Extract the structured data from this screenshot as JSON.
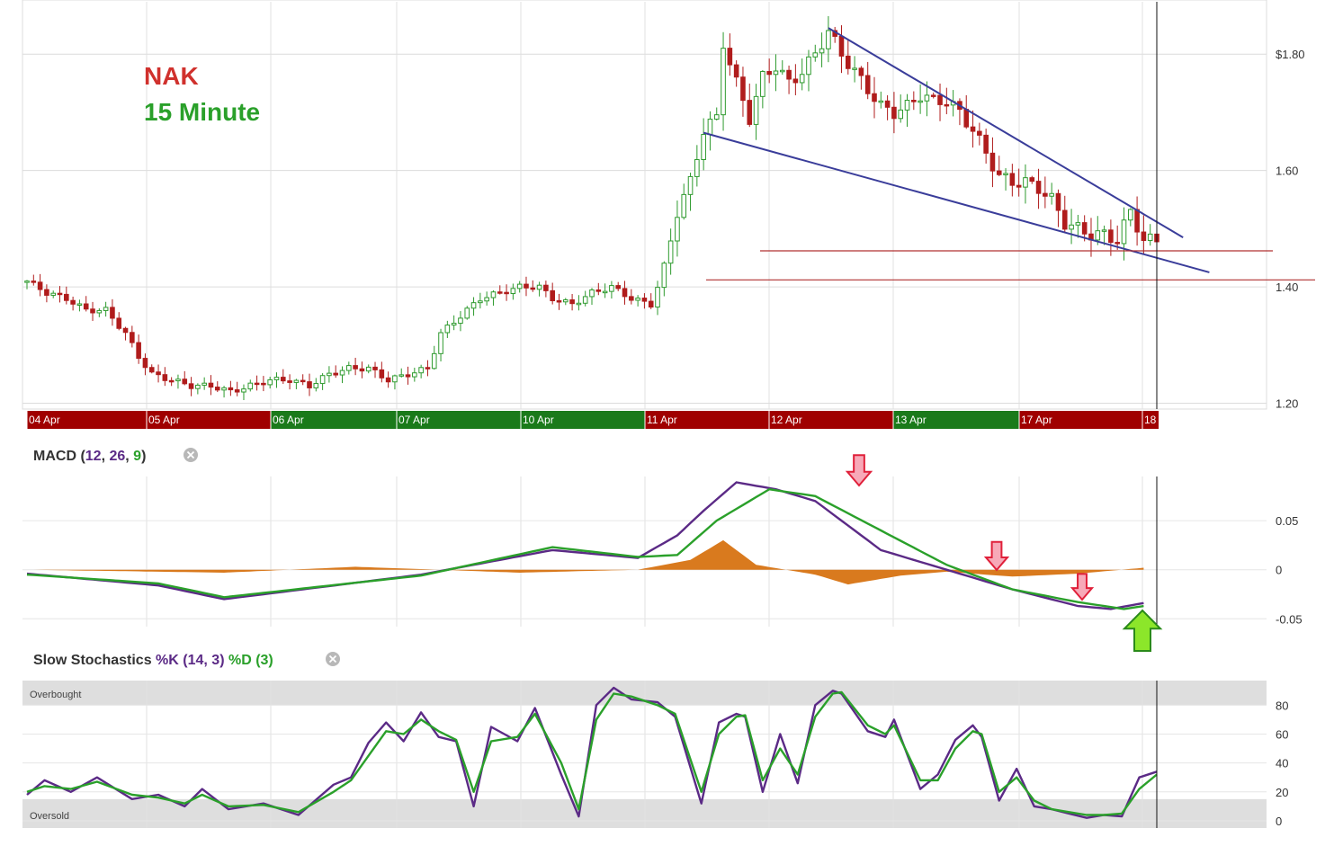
{
  "symbol": {
    "ticker": "NAK",
    "interval": "15 Minute",
    "ticker_color": "#d0312d",
    "interval_color": "#2aa02a"
  },
  "date_axis": {
    "labels": [
      "04 Apr",
      "05 Apr",
      "06 Apr",
      "07 Apr",
      "10 Apr",
      "11 Apr",
      "12 Apr",
      "13 Apr",
      "17 Apr",
      "18"
    ],
    "colors": [
      "#a00000",
      "#a00000",
      "#1a7a1a",
      "#1a7a1a",
      "#1a7a1a",
      "#a00000",
      "#a00000",
      "#1a7a1a",
      "#a00000",
      "#a00000"
    ]
  },
  "panels": {
    "macd": {
      "name": "MACD",
      "p1": "12",
      "p2": "26",
      "p3": "9"
    },
    "stoch": {
      "name": "Slow Stochastics",
      "k_label": "%K (14, 3)",
      "d_label": "%D (3)",
      "overbought": "Overbought",
      "oversold": "Oversold"
    }
  },
  "colors": {
    "up": "#2e9a2e",
    "down": "#b01c1c",
    "macd": "#5b2a86",
    "signal": "#2aa02a",
    "hist": "#d97a1e",
    "trend": "#3a3d9a",
    "support": "#b03030"
  },
  "chart_data": [
    {
      "type": "candlestick",
      "title": "NAK 15 Minute",
      "y_ticks": [
        "$1.80",
        "1.60",
        "1.40",
        "1.20"
      ],
      "y_tick_values": [
        1.8,
        1.6,
        1.4,
        1.2
      ],
      "ylim": [
        1.19,
        1.89
      ],
      "close_path": [
        [
          0,
          1.41
        ],
        [
          3,
          1.39
        ],
        [
          6,
          1.38
        ],
        [
          9,
          1.36
        ],
        [
          12,
          1.36
        ],
        [
          15,
          1.32
        ],
        [
          17,
          1.28
        ],
        [
          19,
          1.25
        ],
        [
          22,
          1.24
        ],
        [
          25,
          1.23
        ],
        [
          28,
          1.23
        ],
        [
          31,
          1.22
        ],
        [
          34,
          1.23
        ],
        [
          37,
          1.24
        ],
        [
          40,
          1.24
        ],
        [
          43,
          1.23
        ],
        [
          46,
          1.25
        ],
        [
          49,
          1.26
        ],
        [
          52,
          1.26
        ],
        [
          55,
          1.24
        ],
        [
          58,
          1.25
        ],
        [
          61,
          1.26
        ],
        [
          63,
          1.32
        ],
        [
          66,
          1.35
        ],
        [
          69,
          1.38
        ],
        [
          72,
          1.39
        ],
        [
          75,
          1.4
        ],
        [
          78,
          1.4
        ],
        [
          80,
          1.38
        ],
        [
          83,
          1.37
        ],
        [
          86,
          1.39
        ],
        [
          89,
          1.4
        ],
        [
          92,
          1.38
        ],
        [
          95,
          1.37
        ],
        [
          97,
          1.43
        ],
        [
          99,
          1.53
        ],
        [
          101,
          1.58
        ],
        [
          103,
          1.67
        ],
        [
          105,
          1.69
        ],
        [
          106,
          1.82
        ],
        [
          108,
          1.75
        ],
        [
          110,
          1.69
        ],
        [
          112,
          1.76
        ],
        [
          114,
          1.78
        ],
        [
          116,
          1.75
        ],
        [
          118,
          1.77
        ],
        [
          120,
          1.8
        ],
        [
          122,
          1.84
        ],
        [
          124,
          1.8
        ],
        [
          126,
          1.77
        ],
        [
          128,
          1.74
        ],
        [
          130,
          1.71
        ],
        [
          132,
          1.7
        ],
        [
          134,
          1.71
        ],
        [
          136,
          1.73
        ],
        [
          138,
          1.72
        ],
        [
          140,
          1.72
        ],
        [
          142,
          1.7
        ],
        [
          144,
          1.67
        ],
        [
          146,
          1.63
        ],
        [
          148,
          1.59
        ],
        [
          150,
          1.58
        ],
        [
          152,
          1.58
        ],
        [
          154,
          1.57
        ],
        [
          156,
          1.55
        ],
        [
          158,
          1.51
        ],
        [
          160,
          1.5
        ],
        [
          162,
          1.49
        ],
        [
          164,
          1.49
        ],
        [
          166,
          1.48
        ],
        [
          168,
          1.53
        ],
        [
          170,
          1.48
        ]
      ],
      "annotations": {
        "upper_trendline": [
          [
            122,
            1.845
          ],
          [
            176,
            1.485
          ]
        ],
        "lower_trendline": [
          [
            103,
            1.665
          ],
          [
            180,
            1.425
          ]
        ],
        "support_lines": [
          1.462,
          1.412
        ]
      }
    },
    {
      "type": "line",
      "title": "MACD (12, 26, 9)",
      "y_ticks": [
        "0.05",
        "0",
        "-0.05"
      ],
      "y_tick_values": [
        0.05,
        0,
        -0.05
      ],
      "ylim": [
        -0.058,
        0.095
      ],
      "series": [
        {
          "name": "MACD",
          "points": [
            [
              0,
              -0.004
            ],
            [
              20,
              -0.016
            ],
            [
              30,
              -0.03
            ],
            [
              60,
              -0.005
            ],
            [
              80,
              0.02
            ],
            [
              93,
              0.012
            ],
            [
              99,
              0.035
            ],
            [
              103,
              0.06
            ],
            [
              108,
              0.089
            ],
            [
              114,
              0.082
            ],
            [
              120,
              0.07
            ],
            [
              130,
              0.02
            ],
            [
              140,
              0.0
            ],
            [
              150,
              -0.02
            ],
            [
              160,
              -0.037
            ],
            [
              165,
              -0.04
            ],
            [
              170,
              -0.034
            ]
          ]
        },
        {
          "name": "Signal",
          "points": [
            [
              0,
              -0.005
            ],
            [
              20,
              -0.014
            ],
            [
              30,
              -0.028
            ],
            [
              60,
              -0.006
            ],
            [
              80,
              0.023
            ],
            [
              93,
              0.013
            ],
            [
              99,
              0.015
            ],
            [
              105,
              0.05
            ],
            [
              113,
              0.082
            ],
            [
              120,
              0.075
            ],
            [
              130,
              0.04
            ],
            [
              140,
              0.005
            ],
            [
              150,
              -0.02
            ],
            [
              160,
              -0.033
            ],
            [
              167,
              -0.04
            ],
            [
              170,
              -0.037
            ]
          ]
        },
        {
          "name": "Histogram",
          "points": [
            [
              0,
              0.0
            ],
            [
              20,
              -0.002
            ],
            [
              30,
              -0.003
            ],
            [
              50,
              0.003
            ],
            [
              75,
              -0.003
            ],
            [
              93,
              0.0
            ],
            [
              101,
              0.01
            ],
            [
              106,
              0.03
            ],
            [
              111,
              0.005
            ],
            [
              120,
              -0.005
            ],
            [
              125,
              -0.015
            ],
            [
              133,
              -0.006
            ],
            [
              140,
              -0.002
            ],
            [
              150,
              -0.007
            ],
            [
              160,
              -0.004
            ],
            [
              170,
              0.002
            ]
          ]
        }
      ]
    },
    {
      "type": "line",
      "title": "Slow Stochastics %K (14, 3) %D (3)",
      "y_ticks": [
        "80",
        "60",
        "40",
        "20",
        "0"
      ],
      "y_tick_values": [
        80,
        60,
        40,
        20,
        0
      ],
      "ylim": [
        -5,
        97
      ],
      "zones": {
        "overbought": [
          80,
          97
        ],
        "oversold": [
          -5,
          15
        ]
      },
      "series": [
        {
          "name": "%K",
          "points": [
            [
              0,
              18
            ],
            [
              2,
              28
            ],
            [
              5,
              20
            ],
            [
              8,
              30
            ],
            [
              12,
              15
            ],
            [
              15,
              18
            ],
            [
              18,
              10
            ],
            [
              20,
              22
            ],
            [
              23,
              8
            ],
            [
              27,
              12
            ],
            [
              31,
              4
            ],
            [
              35,
              25
            ],
            [
              37,
              30
            ],
            [
              39,
              54
            ],
            [
              41,
              68
            ],
            [
              43,
              55
            ],
            [
              45,
              75
            ],
            [
              47,
              58
            ],
            [
              49,
              55
            ],
            [
              51,
              10
            ],
            [
              53,
              65
            ],
            [
              56,
              55
            ],
            [
              58,
              78
            ],
            [
              61,
              32
            ],
            [
              63,
              3
            ],
            [
              65,
              80
            ],
            [
              67,
              92
            ],
            [
              69,
              84
            ],
            [
              72,
              82
            ],
            [
              74,
              72
            ],
            [
              77,
              12
            ],
            [
              79,
              68
            ],
            [
              81,
              74
            ],
            [
              82,
              72
            ],
            [
              84,
              20
            ],
            [
              86,
              60
            ],
            [
              88,
              26
            ],
            [
              90,
              80
            ],
            [
              92,
              90
            ],
            [
              93,
              88
            ],
            [
              96,
              62
            ],
            [
              98,
              58
            ],
            [
              99,
              70
            ],
            [
              102,
              22
            ],
            [
              104,
              32
            ],
            [
              106,
              56
            ],
            [
              108,
              66
            ],
            [
              109,
              58
            ],
            [
              111,
              14
            ],
            [
              113,
              36
            ],
            [
              115,
              10
            ],
            [
              117,
              8
            ],
            [
              119,
              5
            ],
            [
              121,
              2
            ],
            [
              123,
              4
            ],
            [
              125,
              3
            ],
            [
              127,
              30
            ],
            [
              129,
              34
            ]
          ]
        },
        {
          "name": "%D",
          "points": [
            [
              0,
              20
            ],
            [
              2,
              24
            ],
            [
              5,
              22
            ],
            [
              8,
              27
            ],
            [
              12,
              18
            ],
            [
              15,
              16
            ],
            [
              18,
              12
            ],
            [
              20,
              18
            ],
            [
              23,
              10
            ],
            [
              27,
              11
            ],
            [
              31,
              6
            ],
            [
              35,
              20
            ],
            [
              37,
              28
            ],
            [
              39,
              45
            ],
            [
              41,
              62
            ],
            [
              43,
              60
            ],
            [
              45,
              70
            ],
            [
              47,
              62
            ],
            [
              49,
              56
            ],
            [
              51,
              20
            ],
            [
              53,
              55
            ],
            [
              56,
              58
            ],
            [
              58,
              74
            ],
            [
              61,
              40
            ],
            [
              63,
              8
            ],
            [
              65,
              70
            ],
            [
              67,
              88
            ],
            [
              69,
              86
            ],
            [
              72,
              80
            ],
            [
              74,
              74
            ],
            [
              77,
              20
            ],
            [
              79,
              60
            ],
            [
              81,
              72
            ],
            [
              82,
              73
            ],
            [
              84,
              28
            ],
            [
              86,
              50
            ],
            [
              88,
              32
            ],
            [
              90,
              72
            ],
            [
              92,
              88
            ],
            [
              93,
              89
            ],
            [
              96,
              66
            ],
            [
              98,
              60
            ],
            [
              99,
              66
            ],
            [
              102,
              28
            ],
            [
              104,
              28
            ],
            [
              106,
              50
            ],
            [
              108,
              62
            ],
            [
              109,
              60
            ],
            [
              111,
              20
            ],
            [
              113,
              30
            ],
            [
              115,
              14
            ],
            [
              117,
              8
            ],
            [
              119,
              6
            ],
            [
              121,
              4
            ],
            [
              123,
              4
            ],
            [
              125,
              5
            ],
            [
              127,
              22
            ],
            [
              129,
              32
            ]
          ]
        }
      ]
    }
  ]
}
